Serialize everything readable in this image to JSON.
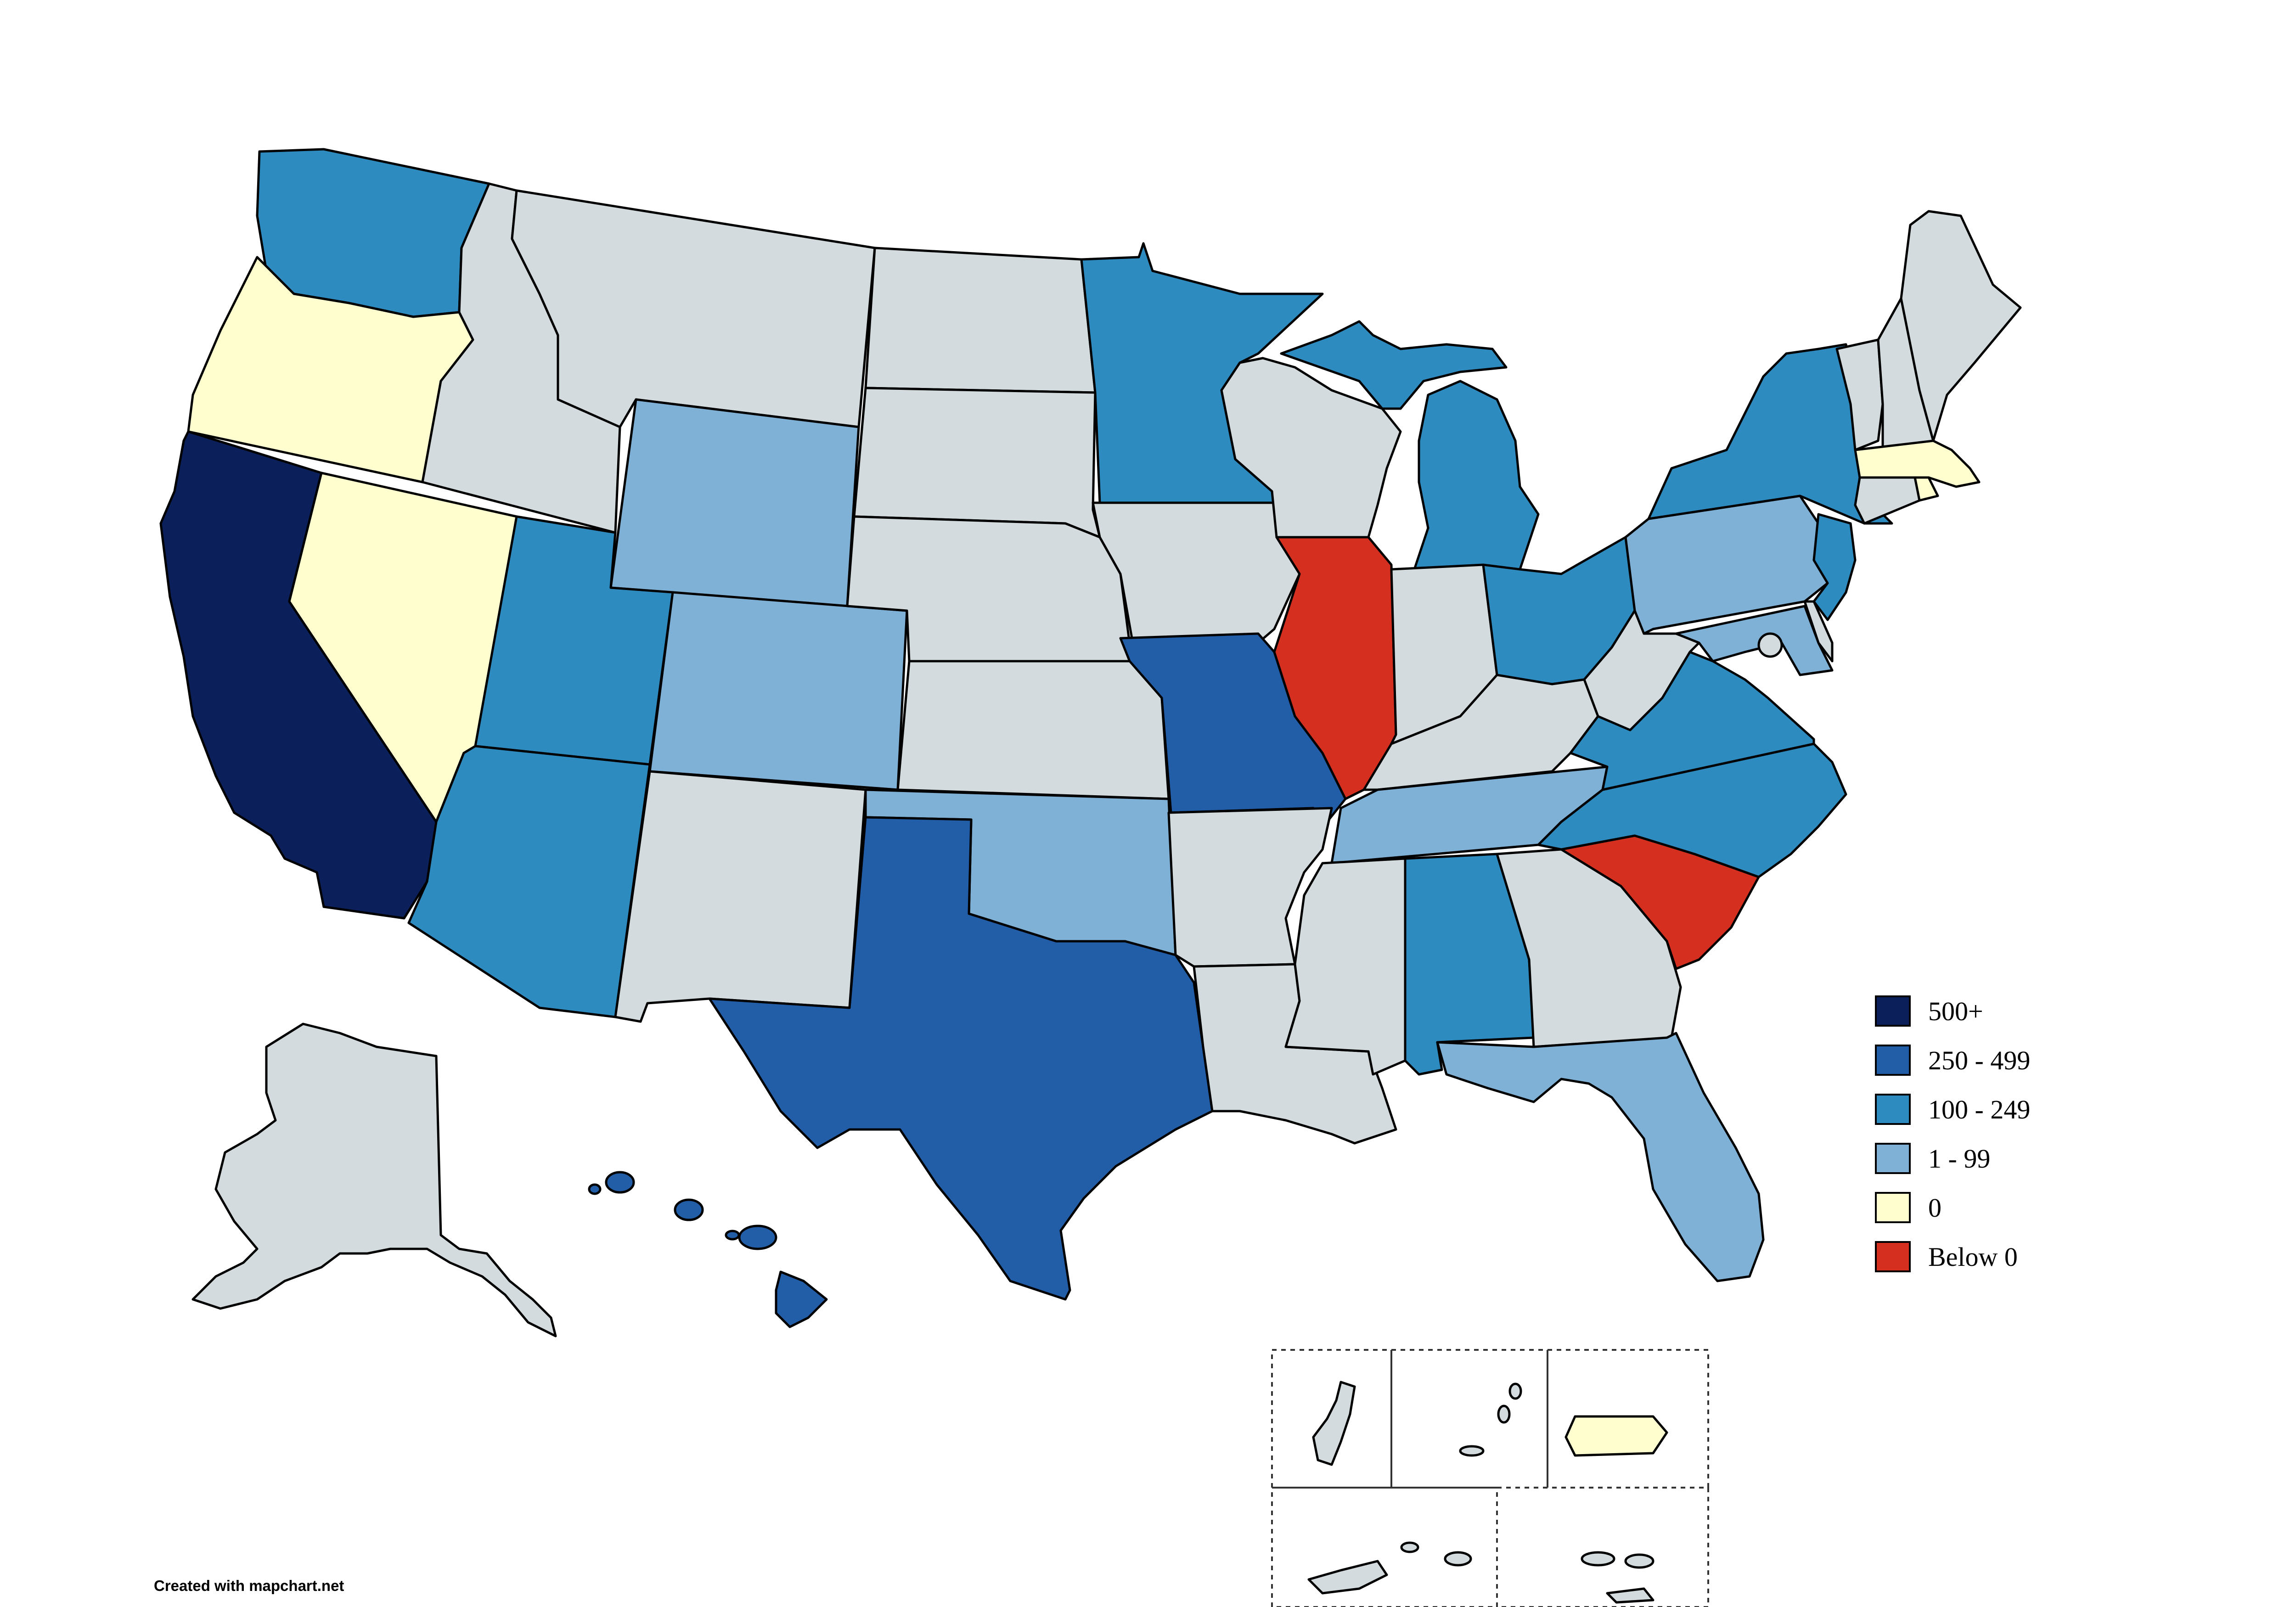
{
  "colors": {
    "500_plus": "#0b1f5a",
    "250_499": "#225da8",
    "100_249": "#2d8bc0",
    "1_99": "#7fb0d5",
    "zero": "#fefece",
    "below_zero": "#d5301f",
    "no_data": "#d3dbde"
  },
  "legend": [
    {
      "label": "500+",
      "color": "#0b1f5a"
    },
    {
      "label": "250 - 499",
      "color": "#225da8"
    },
    {
      "label": "100 - 249",
      "color": "#2d8bc0"
    },
    {
      "label": "1 - 99",
      "color": "#7fb0d5"
    },
    {
      "label": "0",
      "color": "#fefece"
    },
    {
      "label": "Below 0",
      "color": "#d5301f"
    }
  ],
  "categories": {
    "CA": "500+",
    "TX": "250 - 499",
    "MO": "250 - 499",
    "HI": "250 - 499",
    "WA": "100 - 249",
    "UT": "100 - 249",
    "AZ": "100 - 249",
    "MN": "100 - 249",
    "MI": "100 - 249",
    "OH": "100 - 249",
    "NY": "100 - 249",
    "NJ": "100 - 249",
    "VA": "100 - 249",
    "NC": "100 - 249",
    "AL": "100 - 249",
    "WY": "1 - 99",
    "CO": "1 - 99",
    "OK": "1 - 99",
    "TN": "1 - 99",
    "PA": "1 - 99",
    "FL": "1 - 99",
    "MD": "1 - 99",
    "OR": "0",
    "NV": "0",
    "MA": "0",
    "RI": "0",
    "PR": "0",
    "IL": "Below 0",
    "SC": "Below 0"
  },
  "credit": "Created with mapchart.net"
}
